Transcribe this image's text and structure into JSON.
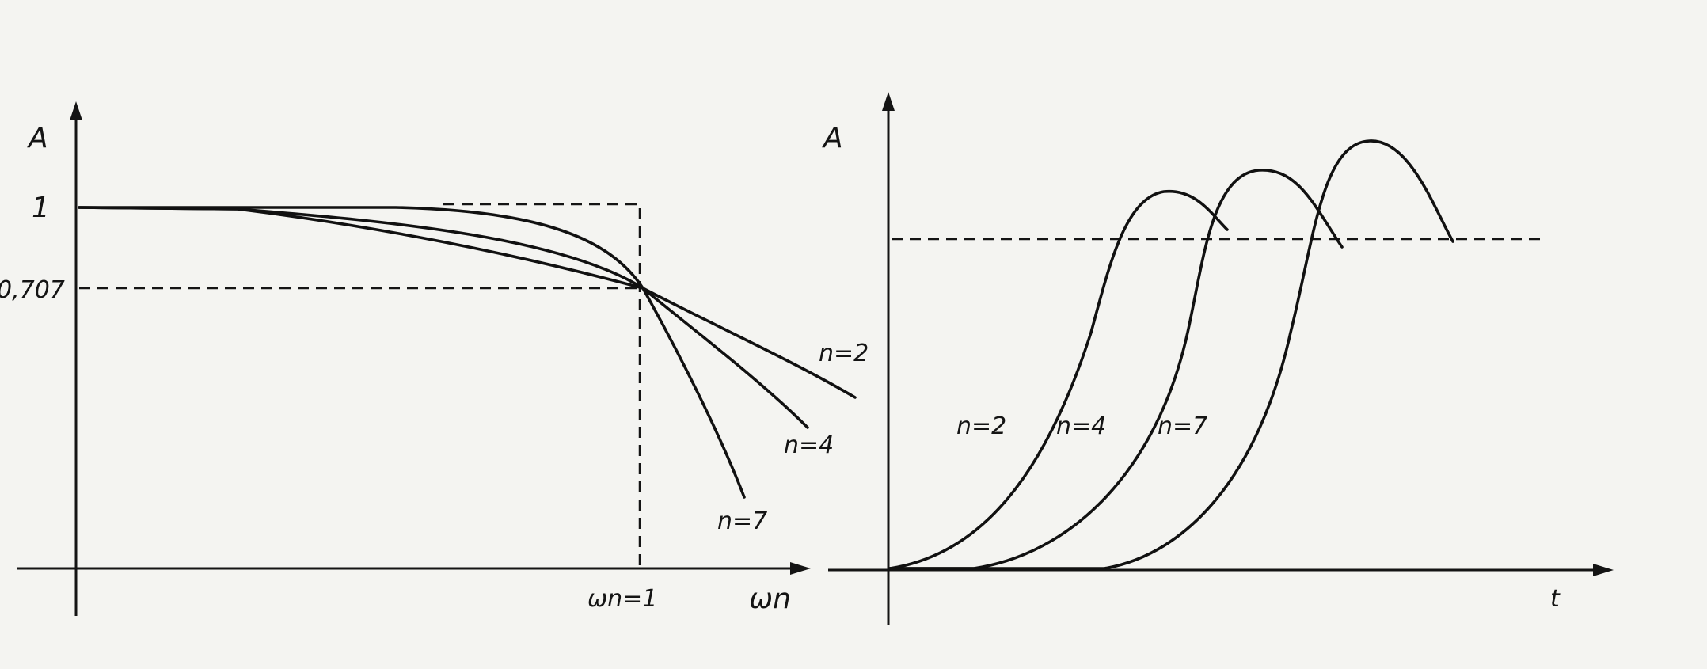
{
  "left_panel": {
    "y_axis_label": "A",
    "tick_one": "1",
    "tick_0707": "0,707",
    "cutoff_label": "ωn=1",
    "x_axis_label": "ωn",
    "curve_labels": [
      "n=2",
      "n=4",
      "n=7"
    ]
  },
  "right_panel": {
    "y_axis_label": "A",
    "x_axis_label": "t",
    "curve_labels": [
      "n=2",
      "n=4",
      "n=7"
    ]
  }
}
